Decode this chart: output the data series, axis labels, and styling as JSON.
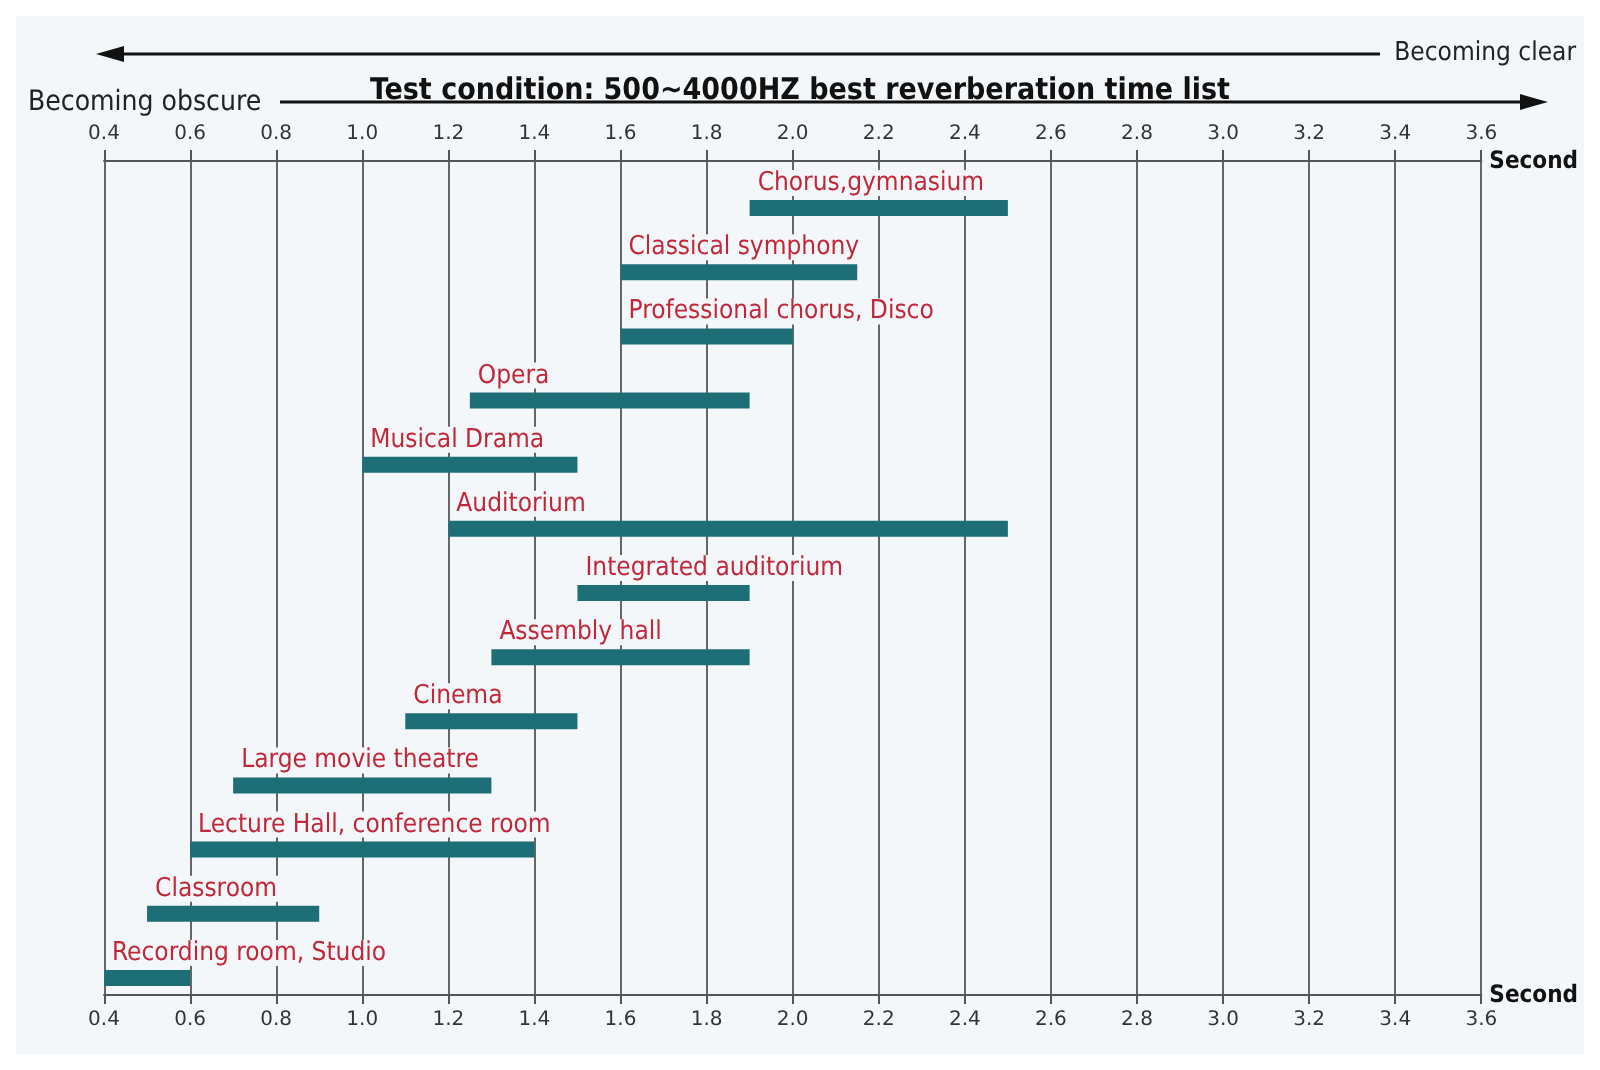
{
  "chart_data": {
    "type": "bar",
    "orientation": "horizontal",
    "title": "Test condition: 500~4000HZ best reverberation time list",
    "annotations": [
      "Becoming clear",
      "Becoming obscure"
    ],
    "xlabel": "Second",
    "x2label": "Second",
    "categories": [
      "Chorus,gymnasium",
      "Classical symphony",
      "Professional chorus, Disco",
      "Opera",
      "Musical Drama",
      "Auditorium",
      "Integrated auditorium",
      "Assembly hall",
      "Cinema",
      "Large movie theatre",
      "Lecture Hall, conference room",
      "Classroom",
      "Recording room, Studio"
    ],
    "base": [
      1.9,
      1.6,
      1.6,
      1.25,
      1.0,
      1.2,
      1.5,
      1.3,
      1.1,
      0.7,
      0.6,
      0.5,
      0.4
    ],
    "values": [
      0.6,
      0.55,
      0.4,
      0.65,
      0.5,
      1.3,
      0.4,
      0.6,
      0.4,
      0.6,
      0.8,
      0.4,
      0.2
    ],
    "color": "#1e6e78",
    "xlim": [
      0.4,
      3.6
    ],
    "xticks": [
      0.4,
      0.6,
      0.8,
      {
        "value": 1,
        "label": "1.0"
      },
      1.2,
      1.4,
      1.6,
      1.8,
      {
        "value": 2,
        "label": "2.0"
      },
      2.2,
      2.4,
      2.6,
      2.8,
      {
        "value": 3,
        "label": "3.0"
      },
      3.2,
      3.4,
      3.6
    ],
    "x2lim": [
      0.4,
      3.6
    ],
    "x2ticks": [
      0.4,
      0.6,
      0.8,
      {
        "value": 1,
        "label": "1.0"
      },
      1.2,
      1.4,
      1.6,
      1.8,
      {
        "value": 2,
        "label": "2.0"
      },
      2.2,
      2.4,
      2.6,
      2.8,
      {
        "value": 3,
        "label": "3.0"
      },
      3.2,
      3.4,
      3.6
    ],
    "grid": "x"
  }
}
